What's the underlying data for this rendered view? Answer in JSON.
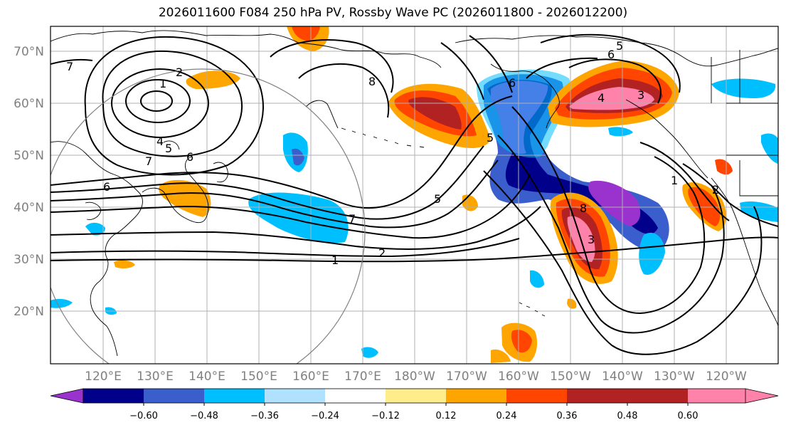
{
  "title": "2026011600 F084 250 hPa PV, Rossby Wave PC (2026011800 - 2026012200)",
  "lat_labels": [
    "70°N",
    "60°N",
    "50°N",
    "40°N",
    "30°N",
    "20°N"
  ],
  "lon_labels": [
    "120°E",
    "130°E",
    "140°E",
    "150°E",
    "160°E",
    "170°E",
    "180°W",
    "170°W",
    "160°W",
    "150°W",
    "140°W",
    "130°W",
    "120°W"
  ],
  "colorbar": {
    "ticks": [
      "−0.60",
      "−0.48",
      "−0.36",
      "−0.24",
      "−0.12",
      "0.12",
      "0.24",
      "0.36",
      "0.48",
      "0.60"
    ],
    "colors": [
      "#9a32cd",
      "#00008b",
      "#3a5fcd",
      "#00bfff",
      "#b0e2ff",
      "#ffffff",
      "#ffec8b",
      "#ffa500",
      "#ff4500",
      "#b22222",
      "#ff82ab"
    ]
  },
  "contour_labels": [
    "7",
    "2",
    "1",
    "4",
    "5",
    "6",
    "7",
    "6",
    "7",
    "2",
    "1",
    "8",
    "5",
    "6",
    "5",
    "4",
    "3",
    "1",
    "2",
    "5",
    "6",
    "8",
    "3"
  ],
  "colors": {
    "purple": "#9a32cd",
    "navy": "#00008b",
    "royalblue": "#3a5fcd",
    "skyblue": "#00bfff",
    "lightblue": "#b0e2ff",
    "yellow": "#ffec8b",
    "orange": "#ffa500",
    "orangered": "#ff4500",
    "firebrick": "#b22222",
    "pink": "#ff82ab"
  }
}
